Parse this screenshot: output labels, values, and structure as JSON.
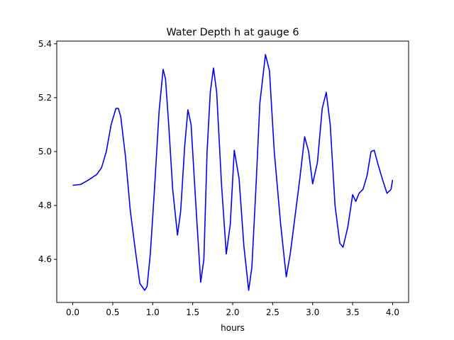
{
  "chart_data": {
    "type": "line",
    "title": "Water Depth h at gauge 6",
    "xlabel": "hours",
    "ylabel": "",
    "xlim": [
      -0.2,
      4.2
    ],
    "ylim": [
      4.44,
      5.41
    ],
    "xticks": [
      0.0,
      0.5,
      1.0,
      1.5,
      2.0,
      2.5,
      3.0,
      3.5,
      4.0
    ],
    "xtick_labels": [
      "0.0",
      "0.5",
      "1.0",
      "1.5",
      "2.0",
      "2.5",
      "3.0",
      "3.5",
      "4.0"
    ],
    "yticks": [
      4.6,
      4.8,
      5.0,
      5.2,
      5.4
    ],
    "ytick_labels": [
      "4.6",
      "4.8",
      "5.0",
      "5.2",
      "5.4"
    ],
    "grid": false,
    "series": [
      {
        "color": "#0000ff",
        "x": [
          0.0,
          0.1,
          0.2,
          0.3,
          0.36,
          0.42,
          0.48,
          0.54,
          0.57,
          0.6,
          0.66,
          0.72,
          0.78,
          0.84,
          0.9,
          0.93,
          0.97,
          1.02,
          1.08,
          1.13,
          1.16,
          1.2,
          1.25,
          1.31,
          1.35,
          1.4,
          1.44,
          1.48,
          1.54,
          1.6,
          1.64,
          1.68,
          1.72,
          1.76,
          1.8,
          1.86,
          1.92,
          1.97,
          2.02,
          2.08,
          2.14,
          2.2,
          2.24,
          2.29,
          2.34,
          2.41,
          2.46,
          2.52,
          2.6,
          2.67,
          2.72,
          2.78,
          2.84,
          2.9,
          2.95,
          3.0,
          3.06,
          3.12,
          3.17,
          3.22,
          3.28,
          3.34,
          3.38,
          3.44,
          3.5,
          3.54,
          3.58,
          3.63,
          3.68,
          3.73,
          3.77,
          3.82,
          3.88,
          3.93,
          3.98,
          4.0
        ],
        "y": [
          4.875,
          4.878,
          4.895,
          4.915,
          4.94,
          5.0,
          5.1,
          5.16,
          5.16,
          5.13,
          4.98,
          4.78,
          4.64,
          4.51,
          4.485,
          4.5,
          4.62,
          4.85,
          5.15,
          5.305,
          5.27,
          5.1,
          4.86,
          4.69,
          4.78,
          5.02,
          5.155,
          5.1,
          4.8,
          4.515,
          4.6,
          5.0,
          5.22,
          5.31,
          5.22,
          4.88,
          4.62,
          4.73,
          5.005,
          4.9,
          4.65,
          4.485,
          4.57,
          4.86,
          5.18,
          5.36,
          5.3,
          5.0,
          4.73,
          4.535,
          4.62,
          4.76,
          4.9,
          5.055,
          5.0,
          4.88,
          4.96,
          5.16,
          5.22,
          5.1,
          4.8,
          4.66,
          4.645,
          4.72,
          4.84,
          4.815,
          4.845,
          4.86,
          4.91,
          5.0,
          5.005,
          4.95,
          4.89,
          4.845,
          4.86,
          4.895
        ]
      }
    ]
  }
}
